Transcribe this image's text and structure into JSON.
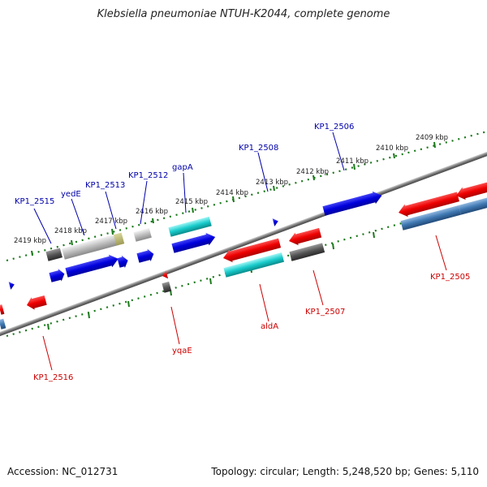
{
  "title": "Klebsiella pneumoniae NTUH-K2044, complete genome",
  "footer": {
    "accession": "Accession: NC_012731",
    "summary": "Topology: circular; Length: 5,248,520 bp; Genes: 5,110"
  },
  "ruler": [
    {
      "label": "2419 kbp"
    },
    {
      "label": "2418 kbp"
    },
    {
      "label": "2417 kbp"
    },
    {
      "label": "2416 kbp"
    },
    {
      "label": "2415 kbp"
    },
    {
      "label": "2414 kbp"
    },
    {
      "label": "2413 kbp"
    },
    {
      "label": "2412 kbp"
    },
    {
      "label": "2411 kbp"
    },
    {
      "label": "2410 kbp"
    },
    {
      "label": "2409 kbp"
    }
  ],
  "gene_labels": {
    "kp1_2515": "KP1_2515",
    "yede": "yedE",
    "kp1_2513": "KP1_2513",
    "kp1_2512": "KP1_2512",
    "gapa": "gapA",
    "kp1_2508": "KP1_2508",
    "kp1_2506": "KP1_2506",
    "kp1_2516": "KP1_2516",
    "yqae": "yqaE",
    "alda": "aldA",
    "kp1_2507": "KP1_2507",
    "kp1_2505": "KP1_2505"
  },
  "colors": {
    "forward_gene": "#0000dd",
    "reverse_gene": "#dd0000",
    "rna_gene": "#00cccc",
    "pseudo_gene": "#555555",
    "tick": "#1a7a1a"
  }
}
